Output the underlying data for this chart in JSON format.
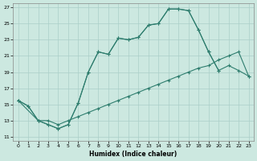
{
  "xlabel": "Humidex (Indice chaleur)",
  "bg_color": "#cce8e0",
  "line_color": "#2e7d6e",
  "grid_color": "#aacfc8",
  "xlim": [
    -0.5,
    23.5
  ],
  "ylim": [
    10.5,
    27.5
  ],
  "xticks": [
    0,
    1,
    2,
    3,
    4,
    5,
    6,
    7,
    8,
    9,
    10,
    11,
    12,
    13,
    14,
    15,
    16,
    17,
    18,
    19,
    20,
    21,
    22,
    23
  ],
  "yticks": [
    11,
    13,
    15,
    17,
    19,
    21,
    23,
    25,
    27
  ],
  "series": [
    {
      "x": [
        0,
        1,
        2,
        3,
        4,
        5,
        6,
        7,
        8,
        9,
        10,
        11,
        12,
        13,
        14,
        15,
        16,
        17,
        18,
        19,
        20
      ],
      "y": [
        15.5,
        14.8,
        13.0,
        12.5,
        12.0,
        12.5,
        15.2,
        19.0,
        21.5,
        21.2,
        23.2,
        23.0,
        23.3,
        24.8,
        25.0,
        26.8,
        26.8,
        26.6,
        24.2,
        21.5,
        19.2
      ]
    },
    {
      "x": [
        0,
        1,
        2,
        3,
        4,
        5,
        6,
        7,
        8,
        9,
        10,
        11,
        12,
        13,
        14,
        15,
        16,
        17,
        18,
        19,
        20,
        21,
        22,
        23
      ],
      "y": [
        15.5,
        14.8,
        13.0,
        12.5,
        12.0,
        12.5,
        15.2,
        19.0,
        21.5,
        21.2,
        23.2,
        23.0,
        23.3,
        24.8,
        25.0,
        26.8,
        26.8,
        26.6,
        24.2,
        21.5,
        19.2,
        19.8,
        19.2,
        18.5
      ]
    },
    {
      "x": [
        0,
        2,
        3,
        4,
        5,
        6,
        7,
        8,
        9,
        10,
        11,
        12,
        13,
        14,
        15,
        16,
        17,
        18,
        19,
        20,
        21,
        22,
        23
      ],
      "y": [
        15.5,
        13.0,
        13.0,
        12.5,
        13.0,
        13.5,
        14.0,
        14.5,
        15.0,
        15.5,
        16.0,
        16.5,
        17.0,
        17.5,
        18.0,
        18.5,
        19.0,
        19.5,
        19.8,
        20.5,
        21.0,
        21.5,
        18.5
      ]
    }
  ]
}
